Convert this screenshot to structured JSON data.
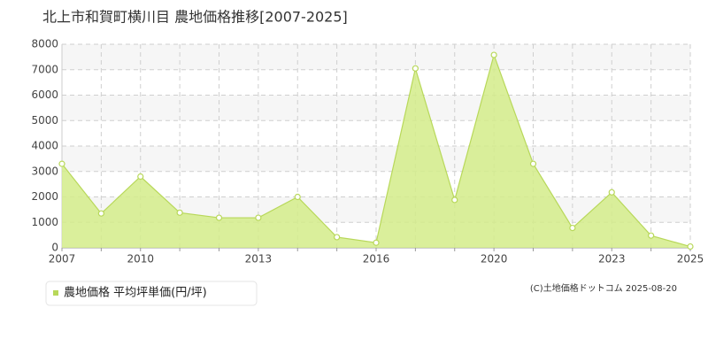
{
  "chart_data": {
    "type": "area",
    "title": "北上市和賀町横川目 農地価格推移[2007-2025]",
    "categories": [
      "2007",
      null,
      "2010",
      null,
      null,
      "2013",
      null,
      null,
      "2016",
      null,
      null,
      "2020",
      null,
      null,
      "2023",
      null,
      "2025"
    ],
    "series": [
      {
        "name": "農地価格 平均坪単価(円/坪)",
        "color": "#b8d85a",
        "values": [
          3300,
          1350,
          2800,
          1380,
          1180,
          1180,
          2000,
          420,
          200,
          7050,
          1880,
          7580,
          3300,
          780,
          2180,
          480,
          50
        ]
      }
    ],
    "ylim": [
      0,
      8000
    ],
    "yticks": [
      0,
      1000,
      2000,
      3000,
      4000,
      5000,
      6000,
      7000,
      8000
    ],
    "grid": true,
    "legend": "bottom-left",
    "source": "(C)土地価格ドットコム 2025-08-20"
  }
}
